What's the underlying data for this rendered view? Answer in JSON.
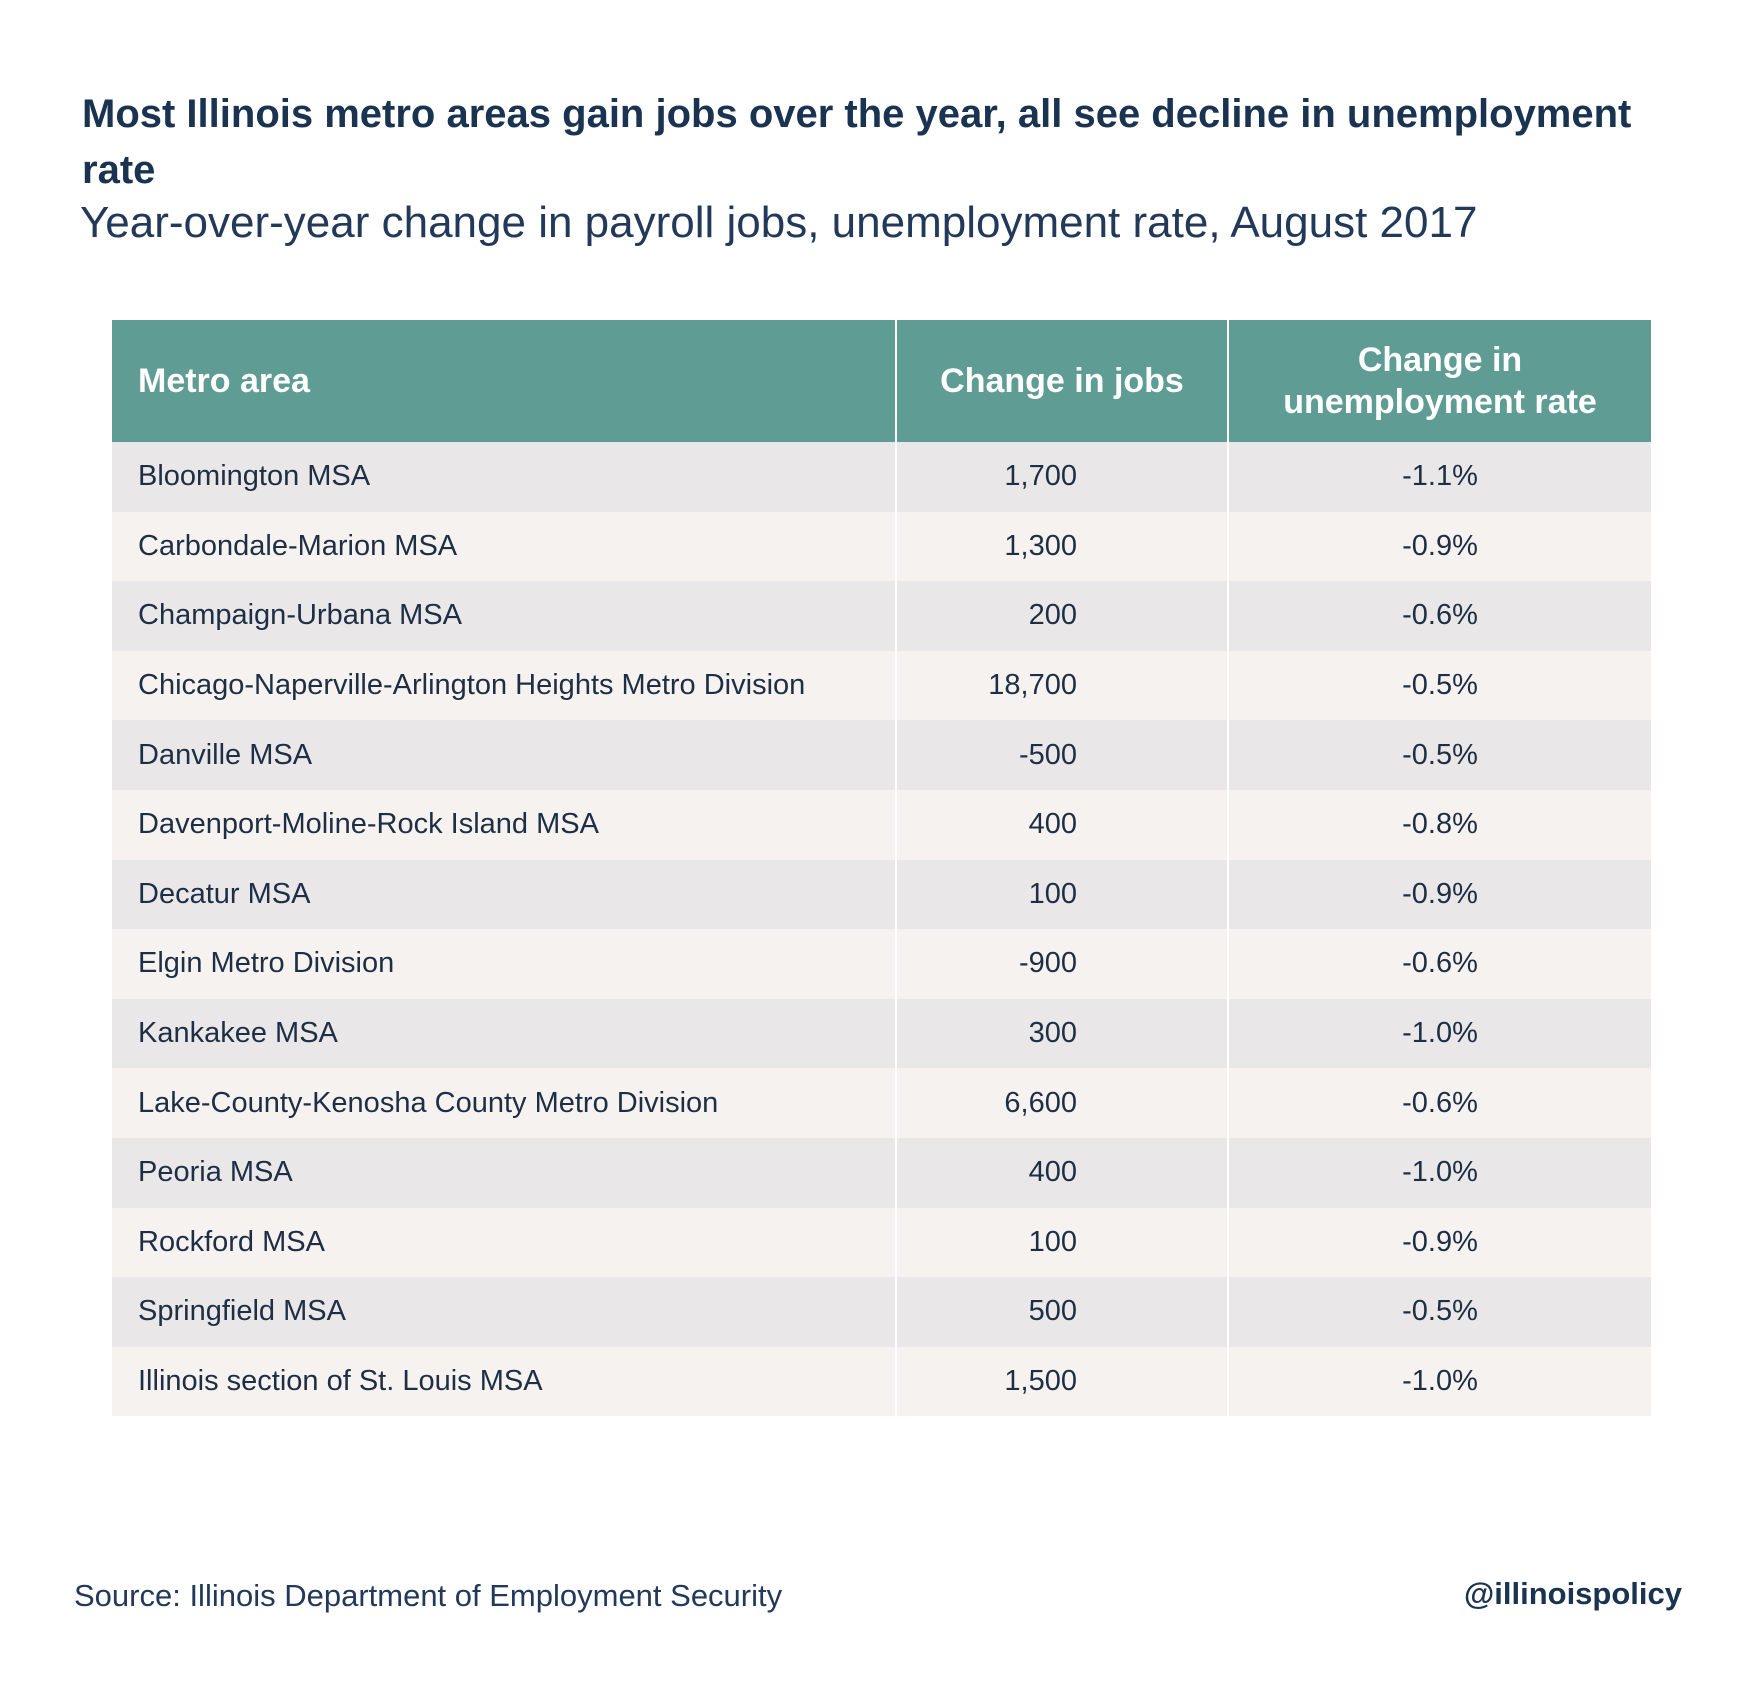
{
  "title": "Most Illinois metro areas gain jobs over the year, all see decline in unemployment rate",
  "subtitle": "Year-over-year change in payroll jobs, unemployment rate, August 2017",
  "footer": {
    "source": "Source: Illinois Department of Employment Security",
    "handle": "@illinoispolicy"
  },
  "colors": {
    "header_bg": "#5e9c94",
    "row_odd": "#e9e7e8",
    "row_even": "#f5f2ef",
    "title_text": "#1a3350"
  },
  "chart_data": {
    "type": "table",
    "columns": [
      "Metro area",
      "Change in jobs",
      "Change in unemployment rate"
    ],
    "rows": [
      [
        "Bloomington MSA",
        "1,700",
        "-1.1%"
      ],
      [
        "Carbondale-Marion MSA",
        "1,300",
        "-0.9%"
      ],
      [
        "Champaign-Urbana MSA",
        "200",
        "-0.6%"
      ],
      [
        "Chicago-Naperville-Arlington Heights Metro Division",
        "18,700",
        "-0.5%"
      ],
      [
        "Danville MSA",
        "-500",
        "-0.5%"
      ],
      [
        "Davenport-Moline-Rock Island MSA",
        "400",
        "-0.8%"
      ],
      [
        "Decatur MSA",
        "100",
        "-0.9%"
      ],
      [
        "Elgin Metro Division",
        "-900",
        "-0.6%"
      ],
      [
        "Kankakee MSA",
        "300",
        "-1.0%"
      ],
      [
        "Lake-County-Kenosha County Metro Division",
        "6,600",
        "-0.6%"
      ],
      [
        "Peoria MSA",
        "400",
        "-1.0%"
      ],
      [
        "Rockford MSA",
        "100",
        "-0.9%"
      ],
      [
        "Springfield MSA",
        "500",
        "-0.5%"
      ],
      [
        "Illinois section of St. Louis MSA",
        "1,500",
        "-1.0%"
      ]
    ]
  }
}
